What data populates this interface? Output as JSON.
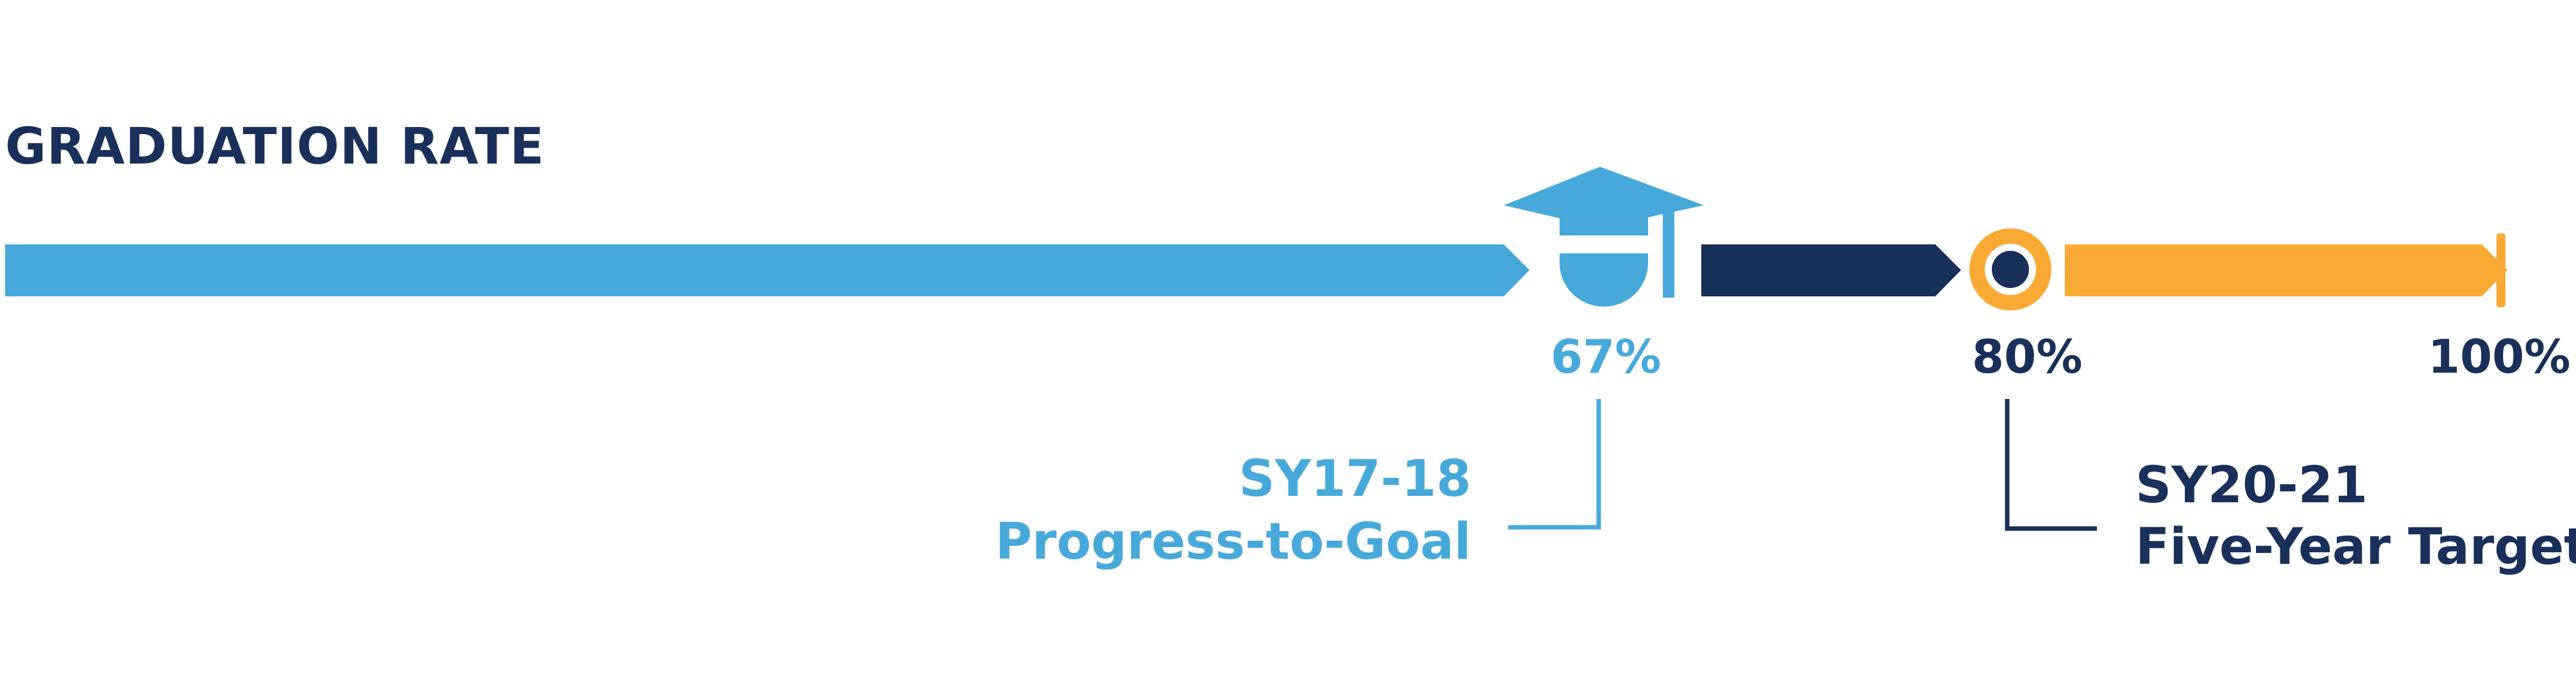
{
  "header": {
    "title": "GRADUATION RATE"
  },
  "progress": {
    "current_value": 67,
    "current_label": "67%",
    "target_value": 80,
    "target_label": "80%",
    "max_value": 100,
    "max_label": "100%"
  },
  "annotations": {
    "current": {
      "year": "SY17-18",
      "text": "Progress-to-Goal"
    },
    "target": {
      "year": "SY20-21",
      "text": "Five-Year Target"
    }
  },
  "icons": {
    "current_marker": "graduation-cap-icon",
    "target_marker": "target-ring-icon"
  },
  "colors": {
    "progress": "#47A9DA",
    "remaining_to_target": "#18305A",
    "beyond_target": "#F8AA35",
    "title": "#18305A"
  }
}
